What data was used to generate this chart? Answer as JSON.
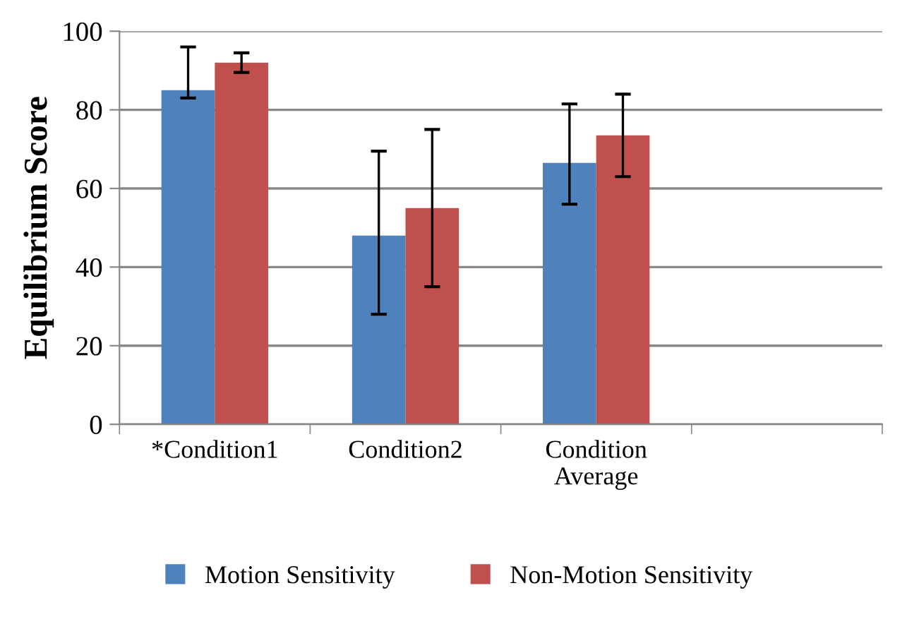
{
  "chart_data": {
    "type": "bar",
    "ylabel": "Equilibrium Score",
    "categories": [
      "*Condition1",
      "Condition2",
      "Condition\nAverage",
      null
    ],
    "series": [
      {
        "name": "Motion Sensitivity",
        "color": "#4f81bd",
        "values": [
          85,
          48,
          66.5,
          null
        ],
        "errors": [
          [
            83,
            96
          ],
          [
            28,
            69.5
          ],
          [
            56,
            81.5
          ],
          null
        ]
      },
      {
        "name": "Non-Motion Sensitivity",
        "color": "#c0504d",
        "values": [
          92,
          55,
          73.5,
          null
        ],
        "errors": [
          2.5,
          20,
          10.5,
          null
        ]
      }
    ],
    "ylim": [
      0,
      100
    ],
    "yticks": [
      0,
      20,
      40,
      60,
      80,
      100
    ],
    "grid": "y",
    "legend": "bottom"
  }
}
